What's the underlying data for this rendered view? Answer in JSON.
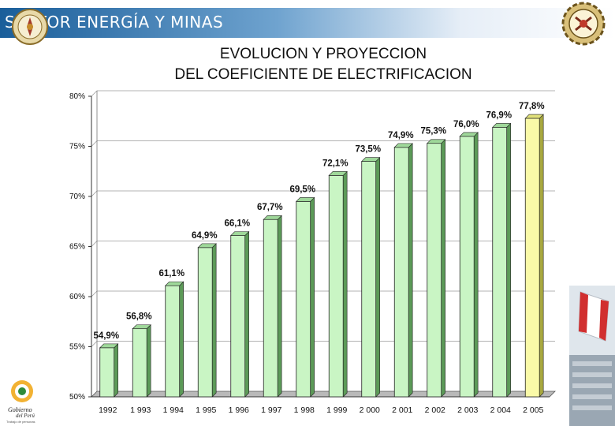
{
  "header": {
    "section": "SECTOR ENERGÍA Y MINAS"
  },
  "title_lines": [
    "EVOLUCION Y PROYECCION",
    "DEL COEFICIENTE DE ELECTRIFICACION"
  ],
  "footer": {
    "gov_name_1": "Gobierno",
    "gov_name_2": "del Perú",
    "gov_tagline": "Trabajo de personas"
  },
  "colors": {
    "bar": "#c9f5c4",
    "bar_projection": "#fafaa8",
    "bar_edge": "#222222"
  },
  "chart_data": {
    "type": "bar",
    "title": "EVOLUCION Y PROYECCION DEL COEFICIENTE DE ELECTRIFICACION",
    "xlabel": "",
    "ylabel": "",
    "ylim": [
      50,
      80
    ],
    "y_ticks": [
      {
        "value": 50,
        "label": "50%"
      },
      {
        "value": 55,
        "label": "55%"
      },
      {
        "value": 60,
        "label": "60%"
      },
      {
        "value": 65,
        "label": "65%"
      },
      {
        "value": 70,
        "label": "70%"
      },
      {
        "value": 75,
        "label": "75%"
      },
      {
        "value": 80,
        "label": "80%"
      }
    ],
    "grid": true,
    "categories": [
      "1992",
      "1 993",
      "1 994",
      "1 995",
      "1 996",
      "1 997",
      "1 998",
      "1 999",
      "2 000",
      "2 001",
      "2 002",
      "2 003",
      "2 004",
      "2 005"
    ],
    "values": [
      54.9,
      56.8,
      61.1,
      64.9,
      66.1,
      67.7,
      69.5,
      72.1,
      73.5,
      74.9,
      75.3,
      76.0,
      76.9,
      77.8
    ],
    "value_labels": [
      "54,9%",
      "56,8%",
      "61,1%",
      "64,9%",
      "66,1%",
      "67,7%",
      "69,5%",
      "72,1%",
      "73,5%",
      "74,9%",
      "75,3%",
      "76,0%",
      "76,9%",
      "77,8%"
    ],
    "projection_index": 13
  }
}
